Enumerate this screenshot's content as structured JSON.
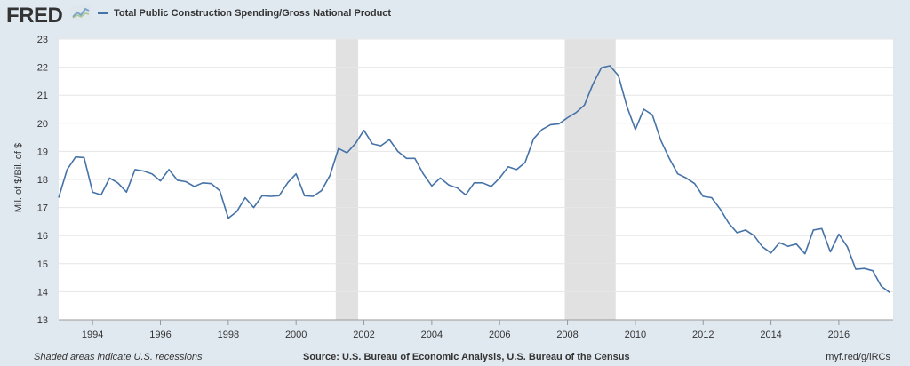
{
  "header": {
    "logo": "FRED",
    "series_name": "Total Public Construction Spending/Gross National Product"
  },
  "footer": {
    "recession_note": "Shaded areas indicate U.S. recessions",
    "source": "Source: U.S. Bureau of Economic Analysis, U.S. Bureau of the Census",
    "link": "myf.red/g/iRCs"
  },
  "colors": {
    "line": "#4572a7",
    "recession": "#e1e1e1",
    "background": "#e1e9f0",
    "plot": "#ffffff"
  },
  "chart_data": {
    "type": "line",
    "title": "",
    "ylabel": "Mil. of $/Bil. of $",
    "xlabel": "",
    "ylim": [
      13,
      23
    ],
    "xlim": [
      1993.0,
      2017.6
    ],
    "yticks": [
      13,
      14,
      15,
      16,
      17,
      18,
      19,
      20,
      21,
      22,
      23
    ],
    "xticks": [
      "1994",
      "1996",
      "1998",
      "2000",
      "2002",
      "2004",
      "2006",
      "2008",
      "2010",
      "2012",
      "2014",
      "2016"
    ],
    "recessions": [
      [
        2001.17,
        2001.83
      ],
      [
        2007.92,
        2009.42
      ]
    ],
    "grid": "horizontal",
    "series": [
      {
        "name": "Total Public Construction Spending/Gross National Product",
        "x": [
          1993.0,
          1993.25,
          1993.5,
          1993.75,
          1994.0,
          1994.25,
          1994.5,
          1994.75,
          1995.0,
          1995.25,
          1995.5,
          1995.75,
          1996.0,
          1996.25,
          1996.5,
          1996.75,
          1997.0,
          1997.25,
          1997.5,
          1997.75,
          1998.0,
          1998.25,
          1998.5,
          1998.75,
          1999.0,
          1999.25,
          1999.5,
          1999.75,
          2000.0,
          2000.25,
          2000.5,
          2000.75,
          2001.0,
          2001.25,
          2001.5,
          2001.75,
          2002.0,
          2002.25,
          2002.5,
          2002.75,
          2003.0,
          2003.25,
          2003.5,
          2003.75,
          2004.0,
          2004.25,
          2004.5,
          2004.75,
          2005.0,
          2005.25,
          2005.5,
          2005.75,
          2006.0,
          2006.25,
          2006.5,
          2006.75,
          2007.0,
          2007.25,
          2007.5,
          2007.75,
          2008.0,
          2008.25,
          2008.5,
          2008.75,
          2009.0,
          2009.25,
          2009.5,
          2009.75,
          2010.0,
          2010.25,
          2010.5,
          2010.75,
          2011.0,
          2011.25,
          2011.5,
          2011.75,
          2012.0,
          2012.25,
          2012.5,
          2012.75,
          2013.0,
          2013.25,
          2013.5,
          2013.75,
          2014.0,
          2014.25,
          2014.5,
          2014.75,
          2015.0,
          2015.25,
          2015.5,
          2015.75,
          2016.0,
          2016.25,
          2016.5,
          2016.75,
          2017.0,
          2017.25,
          2017.5
        ],
        "values": [
          17.35,
          18.35,
          18.8,
          18.78,
          17.55,
          17.45,
          18.05,
          17.87,
          17.55,
          18.35,
          18.3,
          18.2,
          17.95,
          18.35,
          17.97,
          17.92,
          17.75,
          17.88,
          17.85,
          17.6,
          16.62,
          16.85,
          17.35,
          17.0,
          17.42,
          17.4,
          17.42,
          17.88,
          18.2,
          17.42,
          17.4,
          17.6,
          18.15,
          19.1,
          18.95,
          19.28,
          19.75,
          19.27,
          19.2,
          19.42,
          19.0,
          18.75,
          18.75,
          18.2,
          17.77,
          18.05,
          17.8,
          17.7,
          17.45,
          17.88,
          17.88,
          17.75,
          18.05,
          18.45,
          18.35,
          18.6,
          19.45,
          19.78,
          19.95,
          19.98,
          20.2,
          20.38,
          20.65,
          21.4,
          21.98,
          22.05,
          21.7,
          20.6,
          19.78,
          20.5,
          20.3,
          19.4,
          18.75,
          18.2,
          18.05,
          17.85,
          17.4,
          17.35,
          16.95,
          16.45,
          16.1,
          16.2,
          16.0,
          15.6,
          15.38,
          15.75,
          15.62,
          15.7,
          15.35,
          16.2,
          16.25,
          15.42,
          16.05,
          15.6,
          14.8,
          14.83,
          14.75,
          14.2,
          13.97
        ]
      }
    ]
  }
}
